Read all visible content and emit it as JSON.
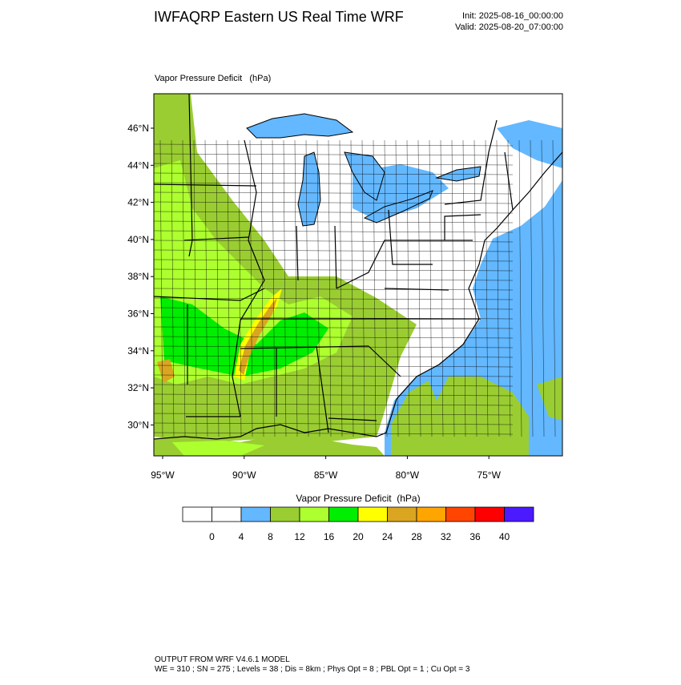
{
  "header": {
    "title": "IWFAQRP Eastern US Real Time WRF",
    "init": "Init: 2025-08-16_00:00:00",
    "valid": "Valid: 2025-08-20_07:00:00"
  },
  "map": {
    "title": "Vapor Pressure Deficit   (hPa)",
    "lat_labels": [
      "46°N",
      "44°N",
      "42°N",
      "40°N",
      "38°N",
      "36°N",
      "34°N",
      "32°N",
      "30°N"
    ],
    "lon_labels": [
      "95°W",
      "90°W",
      "85°W",
      "80°W",
      "75°W"
    ]
  },
  "legend": {
    "title": "Vapor Pressure Deficit  (hPa)",
    "levels": [
      0,
      4,
      8,
      12,
      16,
      20,
      24,
      28,
      32,
      36,
      40
    ],
    "colors": [
      "#ffffff",
      "#ffffff",
      "#63b8ff",
      "#9acd32",
      "#adff2f",
      "#00ee00",
      "#ffff00",
      "#daa520",
      "#ffa500",
      "#ff4500",
      "#ff0000",
      "#4b1aff"
    ]
  },
  "footer": {
    "line1": "OUTPUT FROM WRF V4.6.1 MODEL",
    "line2": "WE = 310 ; SN = 275 ; Levels = 38 ; Dis = 8km ; Phys Opt = 8 ; PBL Opt = 1 ; Cu Opt = 3"
  }
}
